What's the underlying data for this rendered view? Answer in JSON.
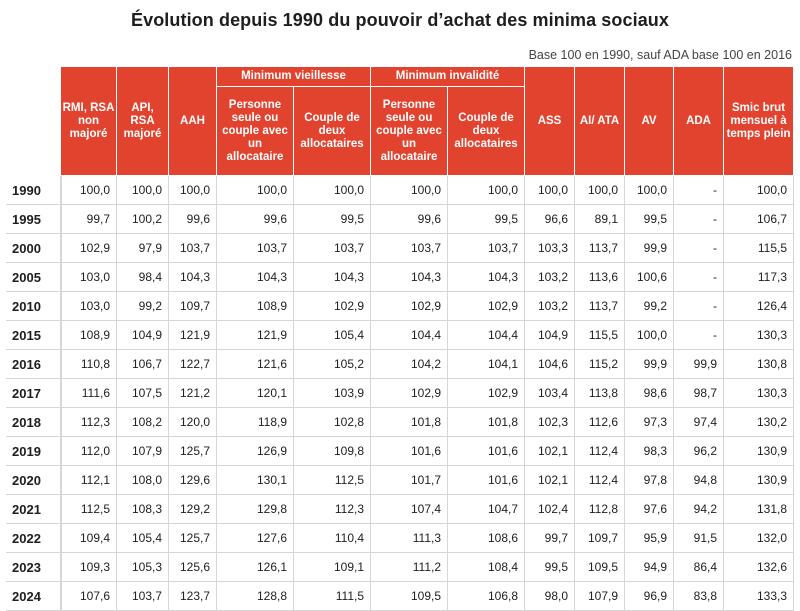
{
  "title": "Évolution depuis 1990 du pouvoir d’achat des minima sociaux",
  "note": "Base 100 en 1990, sauf ADA base 100 en 2016",
  "groups": {
    "vieillesse": "Minimum vieillesse",
    "invalidite": "Minimum invalidité"
  },
  "columns": [
    "RMI, RSA non majoré",
    "API, RSA majoré",
    "AAH",
    "Personne seule ou couple avec un allocataire",
    "Couple de deux allocataires",
    "Personne seule ou couple avec un allocataire",
    "Couple de deux allocataires",
    "ASS",
    "AI/ ATA",
    "AV",
    "ADA",
    "Smic brut mensuel à temps plein"
  ],
  "rows": [
    {
      "year": "1990",
      "v": [
        "100,0",
        "100,0",
        "100,0",
        "100,0",
        "100,0",
        "100,0",
        "100,0",
        "100,0",
        "100,0",
        "100,0",
        "-",
        "100,0"
      ]
    },
    {
      "year": "1995",
      "v": [
        "99,7",
        "100,2",
        "99,6",
        "99,6",
        "99,5",
        "99,6",
        "99,5",
        "96,6",
        "89,1",
        "99,5",
        "-",
        "106,7"
      ]
    },
    {
      "year": "2000",
      "v": [
        "102,9",
        "97,9",
        "103,7",
        "103,7",
        "103,7",
        "103,7",
        "103,7",
        "103,3",
        "113,7",
        "99,9",
        "-",
        "115,5"
      ]
    },
    {
      "year": "2005",
      "v": [
        "103,0",
        "98,4",
        "104,3",
        "104,3",
        "104,3",
        "104,3",
        "104,3",
        "103,2",
        "113,6",
        "100,6",
        "-",
        "117,3"
      ]
    },
    {
      "year": "2010",
      "v": [
        "103,0",
        "99,2",
        "109,7",
        "108,9",
        "102,9",
        "102,9",
        "102,9",
        "103,2",
        "113,7",
        "99,2",
        "-",
        "126,4"
      ]
    },
    {
      "year": "2015",
      "v": [
        "108,9",
        "104,9",
        "121,9",
        "121,9",
        "105,4",
        "104,4",
        "104,4",
        "104,9",
        "115,5",
        "100,0",
        "-",
        "130,3"
      ]
    },
    {
      "year": "2016",
      "v": [
        "110,8",
        "106,7",
        "122,7",
        "121,6",
        "105,2",
        "104,2",
        "104,1",
        "104,6",
        "115,2",
        "99,9",
        "99,9",
        "130,8"
      ]
    },
    {
      "year": "2017",
      "v": [
        "111,6",
        "107,5",
        "121,2",
        "120,1",
        "103,9",
        "102,9",
        "102,9",
        "103,4",
        "113,8",
        "98,6",
        "98,7",
        "130,3"
      ]
    },
    {
      "year": "2018",
      "v": [
        "112,3",
        "108,2",
        "120,0",
        "118,9",
        "102,8",
        "101,8",
        "101,8",
        "102,3",
        "112,6",
        "97,3",
        "97,4",
        "130,2"
      ]
    },
    {
      "year": "2019",
      "v": [
        "112,0",
        "107,9",
        "125,7",
        "126,9",
        "109,8",
        "101,6",
        "101,6",
        "102,1",
        "112,4",
        "98,3",
        "96,2",
        "130,9"
      ]
    },
    {
      "year": "2020",
      "v": [
        "112,1",
        "108,0",
        "129,6",
        "130,1",
        "112,5",
        "101,7",
        "101,6",
        "102,1",
        "112,4",
        "97,8",
        "94,8",
        "130,9"
      ]
    },
    {
      "year": "2021",
      "v": [
        "112,5",
        "108,3",
        "129,2",
        "129,8",
        "112,3",
        "107,4",
        "104,7",
        "102,4",
        "112,8",
        "97,6",
        "94,2",
        "131,8"
      ]
    },
    {
      "year": "2022",
      "v": [
        "109,4",
        "105,4",
        "125,7",
        "127,6",
        "110,4",
        "111,3",
        "108,6",
        "99,7",
        "109,7",
        "95,9",
        "91,5",
        "132,0"
      ]
    },
    {
      "year": "2023",
      "v": [
        "109,3",
        "105,3",
        "125,6",
        "126,1",
        "109,1",
        "111,2",
        "108,4",
        "99,5",
        "109,5",
        "94,9",
        "86,4",
        "132,6"
      ]
    },
    {
      "year": "2024",
      "v": [
        "107,6",
        "103,7",
        "123,7",
        "128,8",
        "111,5",
        "109,5",
        "106,8",
        "98,0",
        "107,9",
        "96,9",
        "83,8",
        "133,3"
      ]
    }
  ]
}
